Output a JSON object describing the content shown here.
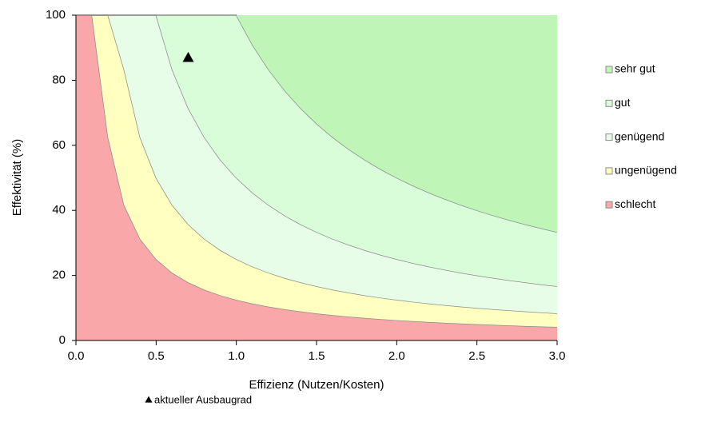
{
  "chart_data": {
    "type": "area",
    "stacked": true,
    "x_label": "Effizienz (Nutzen/Kosten)",
    "y_label": "Effektivität (%)",
    "x": [
      0.0,
      0.1,
      0.2,
      0.3,
      0.4,
      0.5,
      0.6,
      0.7,
      0.8,
      0.9,
      1.0,
      1.1,
      1.2,
      1.3,
      1.4,
      1.5,
      1.6,
      1.7,
      1.8,
      1.9,
      2.0,
      2.1,
      2.2,
      2.3,
      2.4,
      2.5,
      2.6,
      2.7,
      2.8,
      2.9,
      3.0
    ],
    "series": [
      {
        "name": "schlecht",
        "color": "#f9a7a8",
        "values": [
          100,
          100,
          62.5,
          41.67,
          31.25,
          25,
          20.83,
          17.86,
          15.63,
          13.89,
          12.5,
          11.36,
          10.42,
          9.62,
          8.93,
          8.33,
          7.81,
          7.35,
          6.94,
          6.58,
          6.25,
          5.95,
          5.68,
          5.43,
          5.21,
          5,
          4.81,
          4.63,
          4.46,
          4.31,
          4.17
        ]
      },
      {
        "name": "ungenügend",
        "color": "#ffffc0",
        "values": [
          0,
          0,
          37.5,
          41.66,
          31.25,
          25,
          20.84,
          17.85,
          15.62,
          13.89,
          12.5,
          11.37,
          10.41,
          9.61,
          8.93,
          8.34,
          7.82,
          7.36,
          6.95,
          6.58,
          6.25,
          5.95,
          5.68,
          5.44,
          5.21,
          5,
          4.81,
          4.63,
          4.47,
          4.31,
          4.16
        ]
      },
      {
        "name": "genügend",
        "color": "#e8fde8",
        "values": [
          0,
          0,
          0,
          16.67,
          37.5,
          50,
          41.66,
          35.72,
          31.25,
          27.78,
          25,
          22.72,
          20.84,
          19.23,
          17.85,
          16.66,
          15.62,
          14.7,
          13.89,
          13.16,
          12.5,
          11.91,
          11.37,
          10.87,
          10.41,
          10,
          9.61,
          9.26,
          8.93,
          8.62,
          8.34
        ]
      },
      {
        "name": "gut",
        "color": "#d8fdd8",
        "values": [
          0,
          0,
          0,
          0,
          0,
          0,
          16.67,
          28.57,
          37.5,
          44.44,
          50,
          45.46,
          41.66,
          38.46,
          35.72,
          33.34,
          31.25,
          29.41,
          27.78,
          26.31,
          25,
          23.81,
          22.72,
          21.74,
          20.84,
          20,
          19.23,
          18.52,
          17.85,
          17.24,
          16.66
        ]
      },
      {
        "name": "sehr gut",
        "color": "#c0f5b8",
        "values": [
          0,
          0,
          0,
          0,
          0,
          0,
          0,
          0,
          0,
          0,
          0,
          9.09,
          16.67,
          23.08,
          28.57,
          33.33,
          37.5,
          41.18,
          44.44,
          47.37,
          50,
          52.38,
          54.55,
          56.52,
          58.33,
          60,
          61.54,
          62.96,
          64.29,
          65.52,
          66.67
        ]
      }
    ],
    "points": {
      "name": "aktueller Ausbaugrad",
      "marker": "triangle",
      "color": "#000000",
      "x": [
        0.7
      ],
      "values": [
        87
      ]
    },
    "xlim": [
      0,
      3
    ],
    "xticks": [
      {
        "value": 0,
        "label": "0.0"
      },
      0.5,
      {
        "value": 1,
        "label": "1.0"
      },
      1.5,
      {
        "value": 2,
        "label": "2.0"
      },
      2.5,
      {
        "value": 3,
        "label": "3.0"
      }
    ],
    "ylim": [
      0,
      100
    ],
    "yticks": [
      0,
      20,
      40,
      60,
      80,
      100
    ],
    "grid": false,
    "legend": "right"
  }
}
